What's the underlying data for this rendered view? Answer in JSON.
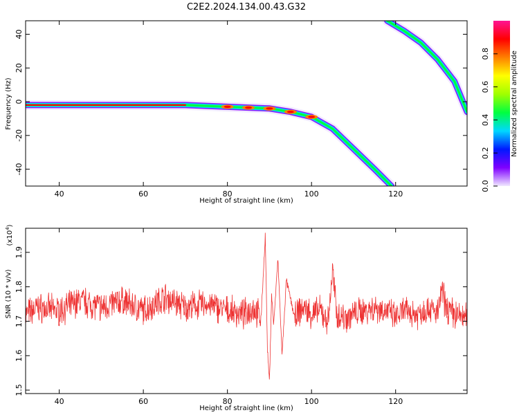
{
  "chart_data": [
    {
      "type": "heatmap",
      "title": "C2E2.2024.134.00.43.G32",
      "xlabel": "Height of straight line (km)",
      "ylabel": "Frequency (Hz)",
      "xlim": [
        32,
        137
      ],
      "ylim": [
        -50,
        48
      ],
      "xticks": [
        "40",
        "60",
        "80",
        "100",
        "120"
      ],
      "yticks": [
        "40",
        "20",
        "0",
        "-20",
        "-40"
      ],
      "colorbar": {
        "label": "Normalized spectral amplitude",
        "range": [
          0.0,
          1.0
        ],
        "ticks": [
          "0.0",
          "0.2",
          "0.4",
          "0.6",
          "0.8"
        ],
        "colormap": [
          "#f0e8ff",
          "#7f00ff",
          "#0018ff",
          "#00d8ff",
          "#00ff40",
          "#a0ff00",
          "#ffff00",
          "#ff8000",
          "#ff0000",
          "#ff1493"
        ]
      },
      "traces": [
        {
          "description": "near-constant line then descending",
          "points": [
            [
              32,
              -2
            ],
            [
              60,
              -2
            ],
            [
              70,
              -2
            ],
            [
              80,
              -3
            ],
            [
              85,
              -3.5
            ],
            [
              90,
              -4
            ],
            [
              95,
              -6
            ],
            [
              100,
              -9
            ],
            [
              105,
              -16
            ],
            [
              110,
              -28
            ],
            [
              115,
              -40
            ],
            [
              119,
              -50
            ]
          ]
        },
        {
          "description": "upper descending branch",
          "points": [
            [
              118,
              48
            ],
            [
              122,
              42
            ],
            [
              126,
              35
            ],
            [
              130,
              25
            ],
            [
              134,
              12
            ],
            [
              137,
              -6
            ]
          ]
        }
      ]
    },
    {
      "type": "line",
      "xlabel": "Height of straight line (km)",
      "ylabel": "SNR (10 * v/v)",
      "scale_label": "(x10",
      "scale_exp": "4",
      "scale_close": ")",
      "xlim": [
        32,
        137
      ],
      "ylim": [
        1.49,
        1.97
      ],
      "xticks": [
        "40",
        "60",
        "80",
        "100",
        "120"
      ],
      "yticks": [
        "1.5",
        "1.6",
        "1.7",
        "1.8",
        "1.9"
      ],
      "color": "#ee3333",
      "series": [
        {
          "x": [
            32,
            35,
            40,
            45,
            50,
            55,
            60,
            65,
            70,
            75,
            80,
            84,
            86,
            88,
            89,
            89.5,
            90,
            90.5,
            91,
            92,
            93,
            94,
            96,
            98,
            100,
            102,
            104,
            105,
            106,
            108,
            110,
            112,
            115,
            118,
            120,
            122,
            125,
            128,
            130,
            131,
            132,
            134,
            137
          ],
          "y": [
            1.72,
            1.74,
            1.73,
            1.76,
            1.74,
            1.76,
            1.73,
            1.77,
            1.74,
            1.75,
            1.73,
            1.72,
            1.74,
            1.71,
            1.95,
            1.62,
            1.52,
            1.78,
            1.69,
            1.88,
            1.6,
            1.82,
            1.71,
            1.74,
            1.72,
            1.73,
            1.7,
            1.85,
            1.72,
            1.71,
            1.72,
            1.73,
            1.74,
            1.73,
            1.71,
            1.73,
            1.72,
            1.74,
            1.72,
            1.79,
            1.74,
            1.72,
            1.71
          ]
        }
      ]
    }
  ]
}
